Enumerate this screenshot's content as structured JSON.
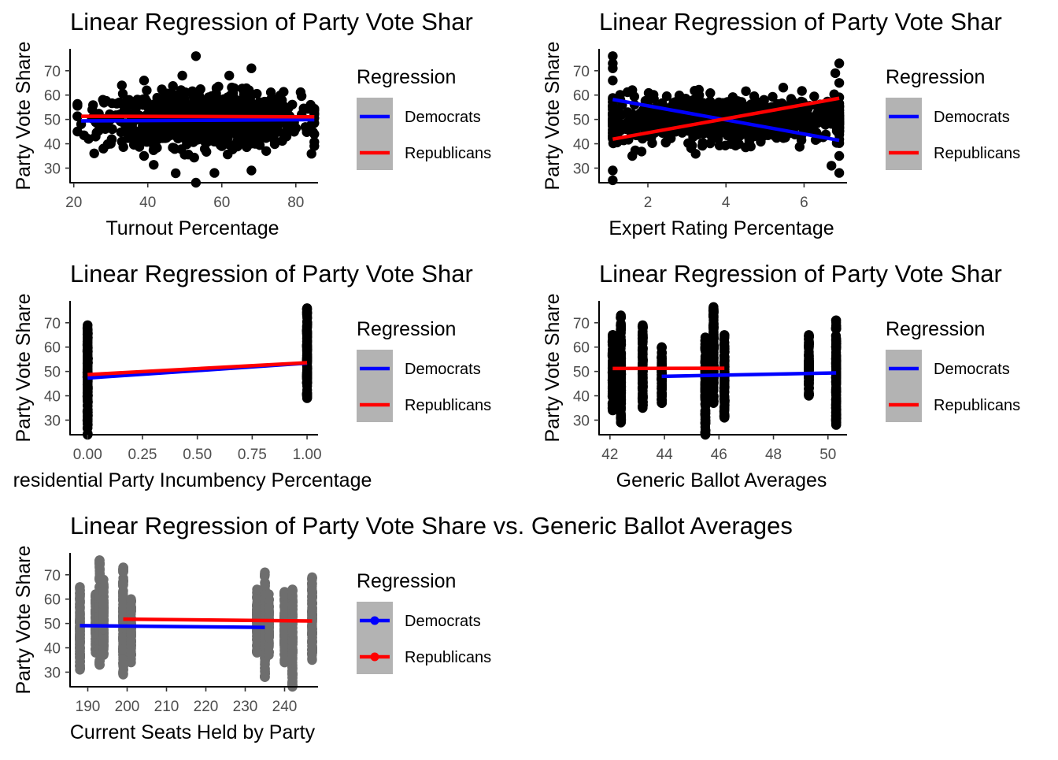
{
  "figure": {
    "background": "#ffffff",
    "point_color_dark": "#000000",
    "point_color_gray": "#6e6e6e"
  },
  "legend": {
    "title": "Regression",
    "entries": [
      {
        "label": "Democrats",
        "color": "#0000ff"
      },
      {
        "label": "Republicans",
        "color": "#ff0000"
      }
    ]
  },
  "chart_data": [
    {
      "type": "scatter",
      "title": "Linear Regression of Party Vote Shar",
      "xlabel": "Turnout Percentage",
      "ylabel": "Party Vote Share",
      "xlim": [
        19,
        86
      ],
      "ylim": [
        24,
        79
      ],
      "xticks": [
        20,
        40,
        60,
        80
      ],
      "xtick_labels": [
        "20",
        "40",
        "60",
        "80"
      ],
      "yticks": [
        30,
        40,
        50,
        60,
        70
      ],
      "ytick_labels": [
        "30",
        "40",
        "50",
        "60",
        "70"
      ],
      "grid": false,
      "legend_position": "right",
      "point_color": "#000000",
      "points": {
        "x_range": [
          21,
          85
        ],
        "x_center": 55,
        "x_spread": 13,
        "y_center": 50,
        "y_spread": 5.5,
        "count": 950,
        "outliers": [
          [
            53,
            76
          ],
          [
            53,
            24
          ],
          [
            68,
            71
          ],
          [
            58,
            28
          ],
          [
            68,
            29
          ],
          [
            22,
            48
          ],
          [
            24,
            42
          ],
          [
            25,
            54
          ],
          [
            28,
            38
          ],
          [
            30,
            40
          ],
          [
            33,
            64
          ],
          [
            39,
            35
          ],
          [
            39,
            66
          ],
          [
            60,
            39
          ],
          [
            84,
            56
          ],
          [
            85,
            44
          ],
          [
            62,
            68
          ],
          [
            49,
            62
          ],
          [
            72,
            37
          ]
        ]
      },
      "series": [
        {
          "name": "Democrats",
          "x": [
            22,
            85
          ],
          "y": [
            49.4,
            49.9
          ]
        },
        {
          "name": "Republicans",
          "x": [
            22,
            85
          ],
          "y": [
            51.3,
            51.1
          ]
        }
      ]
    },
    {
      "type": "scatter",
      "title": "Linear Regression of Party Vote Shar",
      "xlabel": "Expert Rating Percentage",
      "ylabel": "Party Vote Share",
      "xlim": [
        0.75,
        7.1
      ],
      "ylim": [
        24,
        79
      ],
      "xticks": [
        2,
        4,
        6
      ],
      "xtick_labels": [
        "2",
        "4",
        "6"
      ],
      "yticks": [
        30,
        40,
        50,
        60,
        70
      ],
      "ytick_labels": [
        "30",
        "40",
        "50",
        "60",
        "70"
      ],
      "grid": false,
      "legend_position": "right",
      "point_color": "#000000",
      "points": {
        "x_range": [
          1.1,
          6.9
        ],
        "x_center": 4,
        "x_spread": 1.7,
        "y_center": 50,
        "y_spread": 4.5,
        "count": 850,
        "outliers": [
          [
            1.1,
            76
          ],
          [
            1.1,
            73
          ],
          [
            1.1,
            71
          ],
          [
            1.1,
            29
          ],
          [
            1.1,
            25
          ],
          [
            1.1,
            66
          ],
          [
            1.6,
            35
          ],
          [
            1.6,
            62
          ],
          [
            6.9,
            73
          ],
          [
            6.9,
            28
          ],
          [
            6.8,
            69
          ],
          [
            6.7,
            31
          ],
          [
            6.9,
            65
          ],
          [
            6.9,
            35
          ]
        ]
      },
      "series": [
        {
          "name": "Democrats",
          "x": [
            1.1,
            6.9
          ],
          "y": [
            58.2,
            41.4
          ]
        },
        {
          "name": "Republicans",
          "x": [
            1.1,
            6.9
          ],
          "y": [
            41.9,
            58.7
          ]
        }
      ]
    },
    {
      "type": "scatter",
      "title": "Linear Regression of Party Vote Shar",
      "xlabel": "residential Party Incumbency Percentage",
      "ylabel": "Party Vote Share",
      "xlim": [
        -0.08,
        1.05
      ],
      "ylim": [
        24,
        79
      ],
      "xticks": [
        0,
        0.25,
        0.5,
        0.75,
        1.0
      ],
      "xtick_labels": [
        "0.00",
        "0.25",
        "0.50",
        "0.75",
        "1.00"
      ],
      "yticks": [
        30,
        40,
        50,
        60,
        70
      ],
      "ytick_labels": [
        "30",
        "40",
        "50",
        "60",
        "70"
      ],
      "grid": false,
      "legend_position": "right",
      "point_color": "#000000",
      "clusters": [
        {
          "x": 0,
          "y_min": 24,
          "y_max": 69
        },
        {
          "x": 1,
          "y_min": 39,
          "y_max": 76
        }
      ],
      "series": [
        {
          "name": "Democrats",
          "x": [
            0,
            1
          ],
          "y": [
            47.3,
            53.4
          ]
        },
        {
          "name": "Republicans",
          "x": [
            0,
            1
          ],
          "y": [
            48.7,
            53.6
          ]
        }
      ]
    },
    {
      "type": "scatter",
      "title": "Linear Regression of Party Vote Shar",
      "xlabel": "Generic Ballot Averages",
      "ylabel": "Party Vote Share",
      "xlim": [
        41.6,
        50.7
      ],
      "ylim": [
        24,
        79
      ],
      "xticks": [
        42,
        44,
        46,
        48,
        50
      ],
      "xtick_labels": [
        "42",
        "44",
        "46",
        "48",
        "50"
      ],
      "yticks": [
        30,
        40,
        50,
        60,
        70
      ],
      "ytick_labels": [
        "30",
        "40",
        "50",
        "60",
        "70"
      ],
      "grid": false,
      "legend_position": "right",
      "point_color": "#000000",
      "clusters": [
        {
          "x": 42.1,
          "y_min": 34,
          "y_max": 65
        },
        {
          "x": 42.4,
          "y_min": 29,
          "y_max": 73
        },
        {
          "x": 43.2,
          "y_min": 35,
          "y_max": 69
        },
        {
          "x": 43.9,
          "y_min": 37,
          "y_max": 60
        },
        {
          "x": 45.5,
          "y_min": 24,
          "y_max": 64
        },
        {
          "x": 45.8,
          "y_min": 37,
          "y_max": 76
        },
        {
          "x": 46.2,
          "y_min": 31,
          "y_max": 65
        },
        {
          "x": 49.3,
          "y_min": 40,
          "y_max": 65
        },
        {
          "x": 50.3,
          "y_min": 28,
          "y_max": 71
        }
      ],
      "series": [
        {
          "name": "Democrats",
          "x": [
            43.9,
            50.3
          ],
          "y": [
            48.0,
            49.4
          ]
        },
        {
          "name": "Republicans",
          "x": [
            42.1,
            46.2
          ],
          "y": [
            51.2,
            51.3
          ]
        }
      ]
    },
    {
      "type": "scatter",
      "title": "Linear Regression of Party Vote Share vs. Generic Ballot Averages",
      "xlabel": "Current Seats Held by Party",
      "ylabel": "Party Vote Share",
      "xlim": [
        185.5,
        248.5
      ],
      "ylim": [
        24,
        79
      ],
      "xticks": [
        190,
        200,
        210,
        220,
        230,
        240
      ],
      "xtick_labels": [
        "190",
        "200",
        "210",
        "220",
        "230",
        "240"
      ],
      "yticks": [
        30,
        40,
        50,
        60,
        70
      ],
      "ytick_labels": [
        "30",
        "40",
        "50",
        "60",
        "70"
      ],
      "grid": false,
      "legend_position": "right",
      "point_color": "#6e6e6e",
      "clusters": [
        {
          "x": 188,
          "y_min": 31,
          "y_max": 65
        },
        {
          "x": 192,
          "y_min": 38,
          "y_max": 62
        },
        {
          "x": 193,
          "y_min": 33,
          "y_max": 76
        },
        {
          "x": 194,
          "y_min": 37,
          "y_max": 68
        },
        {
          "x": 199,
          "y_min": 29,
          "y_max": 73
        },
        {
          "x": 201,
          "y_min": 34,
          "y_max": 60
        },
        {
          "x": 233,
          "y_min": 38,
          "y_max": 64
        },
        {
          "x": 235,
          "y_min": 28,
          "y_max": 71
        },
        {
          "x": 236,
          "y_min": 37,
          "y_max": 62
        },
        {
          "x": 240,
          "y_min": 34,
          "y_max": 63
        },
        {
          "x": 242,
          "y_min": 24,
          "y_max": 64
        },
        {
          "x": 247,
          "y_min": 35,
          "y_max": 69
        }
      ],
      "series": [
        {
          "name": "Democrats",
          "x": [
            188,
            235
          ],
          "y": [
            49.1,
            48.4
          ]
        },
        {
          "name": "Republicans",
          "x": [
            199,
            247
          ],
          "y": [
            51.8,
            51.0
          ]
        }
      ]
    }
  ]
}
